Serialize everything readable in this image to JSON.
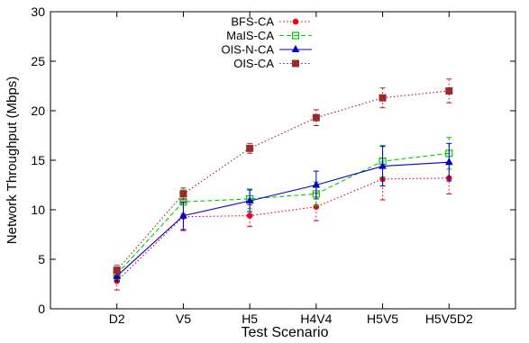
{
  "chart_data": {
    "type": "line",
    "title": "",
    "xlabel": "Test Scenario",
    "ylabel": "Network Throughput (Mbps)",
    "categories": [
      "D2",
      "V5",
      "H5",
      "H4V4",
      "H5V5",
      "H5V5D2"
    ],
    "x_index_range": [
      0,
      7
    ],
    "ylim": [
      0,
      30
    ],
    "yticks": [
      0,
      5,
      10,
      15,
      20,
      25,
      30
    ],
    "grid": false,
    "legend_position": "top-center",
    "series": [
      {
        "name": "BFS-CA",
        "color": "#e8001c",
        "line_style": "dotted",
        "marker": "circle",
        "values": [
          2.8,
          9.3,
          9.4,
          10.3,
          13.1,
          13.2
        ],
        "err": [
          0.9,
          1.4,
          1.1,
          1.4,
          2.1,
          1.6
        ]
      },
      {
        "name": "MaIS-CA",
        "color": "#00c800",
        "line_style": "dashed",
        "marker": "open-square",
        "values": [
          3.5,
          10.8,
          11.1,
          11.6,
          14.9,
          15.7
        ],
        "err": [
          0.5,
          1.2,
          1.0,
          1.2,
          1.6,
          1.6
        ]
      },
      {
        "name": "OIS-N-CA",
        "color": "#0000c8",
        "line_style": "solid",
        "marker": "triangle",
        "values": [
          3.3,
          9.4,
          10.9,
          12.5,
          14.4,
          14.8
        ],
        "err": [
          0.5,
          1.4,
          1.1,
          1.4,
          2.0,
          1.9
        ]
      },
      {
        "name": "OIS-CA",
        "color": "#a0282a",
        "line_style": "dotted",
        "marker": "filled-square",
        "values": [
          3.9,
          11.6,
          16.2,
          19.3,
          21.3,
          22.0
        ],
        "err": [
          0.5,
          0.6,
          0.5,
          0.8,
          1.0,
          1.2
        ]
      }
    ]
  }
}
